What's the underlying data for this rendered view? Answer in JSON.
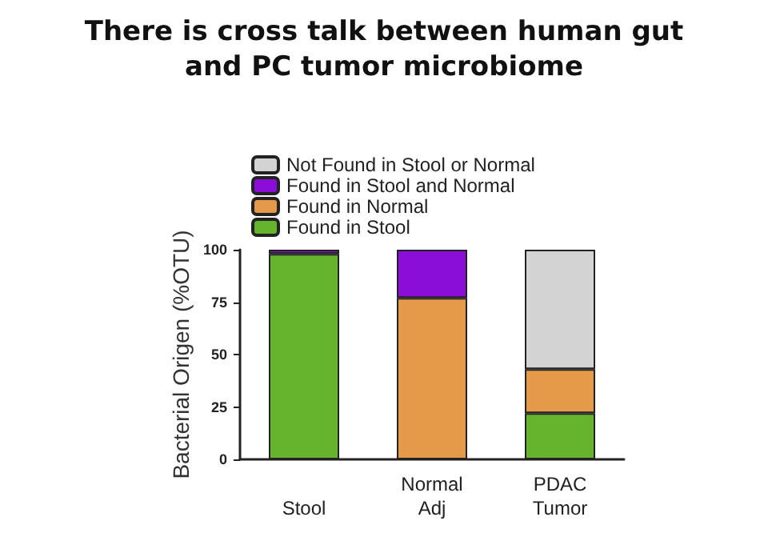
{
  "chart_data": {
    "type": "bar",
    "title": "There is cross talk between human gut\nand PC tumor microbiome",
    "ylabel": "Bacterial Origen (%OTU)",
    "categories": [
      "Stool",
      "Normal\nAdj",
      "PDAC\nTumor"
    ],
    "stacked": true,
    "legend": "top",
    "grid": false,
    "ylim": [
      0,
      100
    ],
    "yticks": [
      0,
      25,
      50,
      75,
      100
    ],
    "series": [
      {
        "name": "Found in Stool",
        "color": "#66b32e",
        "values": [
          98,
          0,
          22
        ]
      },
      {
        "name": "Found in Normal",
        "color": "#e59a4a",
        "values": [
          0,
          77,
          21
        ]
      },
      {
        "name": "Found in Stool and Normal",
        "color": "#8a0ed8",
        "values": [
          2,
          23,
          0
        ]
      },
      {
        "name": "Not Found in Stool or Normal",
        "color": "#d3d3d3",
        "values": [
          0,
          0,
          57
        ]
      }
    ]
  }
}
